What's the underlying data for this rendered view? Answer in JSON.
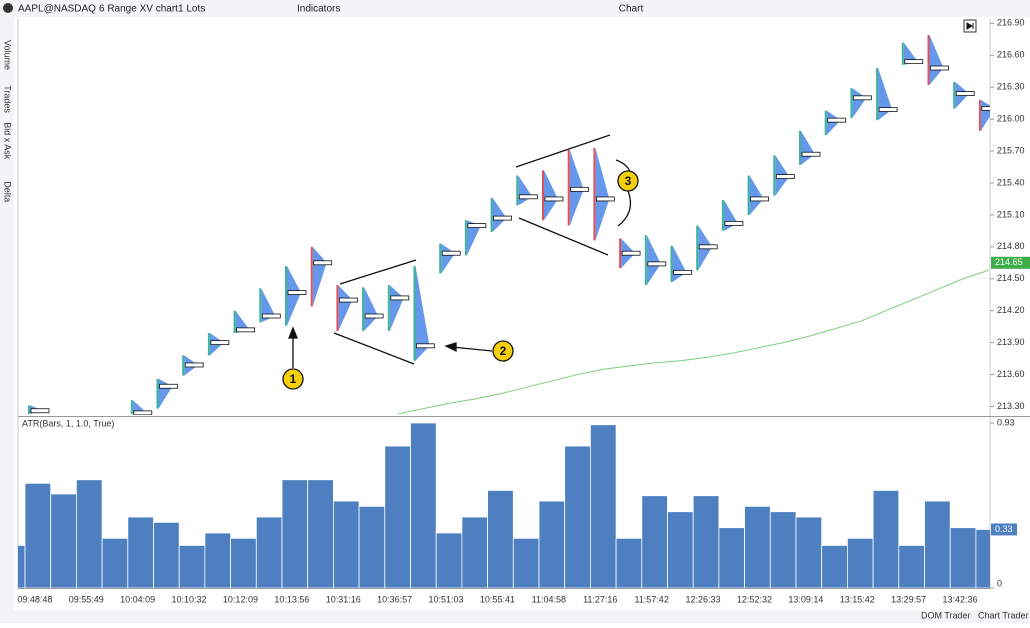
{
  "toolbar": {
    "symbol": "AAPL@NASDAQ",
    "chart_type": "6 Range XV chart",
    "lots": "1 Lots",
    "indicators": "Indicators",
    "window_title": "Chart"
  },
  "side_tabs": [
    "Volume",
    "Trades",
    "Bid x Ask",
    "Delta"
  ],
  "footer": {
    "dom_trader": "DOM Trader",
    "chart_trader": "Chart Trader"
  },
  "annotations": [
    "1",
    "2",
    "3"
  ],
  "chart_data": [
    {
      "type": "range-bar",
      "lows": [
        null,
        213.23,
        null,
        null,
        null,
        213.23,
        213.28,
        213.59,
        213.78,
        213.99,
        214.09,
        214.06,
        214.24,
        214.01,
        214.01,
        214.01,
        213.73,
        214.55,
        214.72,
        214.94,
        215.19,
        215.05,
        215.0,
        214.86,
        214.6,
        214.44,
        214.47,
        214.58,
        214.95,
        215.1,
        215.28,
        215.57,
        215.85,
        216.01,
        215.99,
        216.51,
        216.32,
        216.1,
        215.89
      ],
      "highs": [
        null,
        213.31,
        null,
        null,
        null,
        213.36,
        213.56,
        213.78,
        213.99,
        214.2,
        214.41,
        214.62,
        214.8,
        214.44,
        214.42,
        214.44,
        214.62,
        214.83,
        215.05,
        215.26,
        215.47,
        215.52,
        215.71,
        215.73,
        214.88,
        214.91,
        214.81,
        215.0,
        215.24,
        215.47,
        215.66,
        215.89,
        216.08,
        216.29,
        216.48,
        216.72,
        216.79,
        216.35,
        216.18
      ],
      "pocs": [
        null,
        213.26,
        null,
        null,
        null,
        213.24,
        213.49,
        213.69,
        213.9,
        214.02,
        214.15,
        214.37,
        214.65,
        214.3,
        214.15,
        214.32,
        213.87,
        214.74,
        215.0,
        215.07,
        215.27,
        215.25,
        215.34,
        215.25,
        214.74,
        214.64,
        214.56,
        214.8,
        215.02,
        215.25,
        215.46,
        215.67,
        215.99,
        216.2,
        216.09,
        216.54,
        216.48,
        216.24,
        216.1
      ],
      "bar_colors": [
        null,
        "#3fb39a",
        null,
        null,
        null,
        "#3fb39a",
        "#3fb39a",
        "#3fb39a",
        "#3fb39a",
        "#3fb39a",
        "#3fb39a",
        "#3fb39a",
        "#e0525b",
        "#e0525b",
        "#3fb39a",
        "#3fb39a",
        "#3fb39a",
        "#3fb39a",
        "#3fb39a",
        "#3fb39a",
        "#3fb39a",
        "#e0525b",
        "#e0525b",
        "#e0525b",
        "#e0525b",
        "#3fb39a",
        "#3fb39a",
        "#3fb39a",
        "#3fb39a",
        "#3fb39a",
        "#3fb39a",
        "#3fb39a",
        "#3fb39a",
        "#3fb39a",
        "#3fb39a",
        "#3fb39a",
        "#e0525b",
        "#3fb39a",
        "#e0525b"
      ],
      "profile_color": "#4a86e8",
      "ma": {
        "color": "#7ccf7c",
        "values": [
          null,
          null,
          null,
          null,
          null,
          null,
          null,
          null,
          null,
          null,
          null,
          null,
          null,
          null,
          null,
          213.23,
          213.28,
          213.33,
          213.37,
          213.42,
          213.48,
          213.54,
          213.6,
          213.65,
          213.68,
          213.71,
          213.73,
          213.76,
          213.8,
          213.85,
          213.9,
          213.96,
          214.03,
          214.1,
          214.2,
          214.3,
          214.4,
          214.5,
          214.58
        ]
      },
      "last_price": {
        "value": 214.65,
        "label": "214.65"
      },
      "ylim": [
        213.22,
        216.95
      ],
      "yticks": [
        {
          "value": 216.9,
          "label": "216.90"
        },
        {
          "value": 216.6,
          "label": "216.60"
        },
        {
          "value": 216.3,
          "label": "216.30"
        },
        {
          "value": 216.0,
          "label": "216.00"
        },
        {
          "value": 215.7,
          "label": "215.70"
        },
        {
          "value": 215.4,
          "label": "215.40"
        },
        {
          "value": 215.1,
          "label": "215.10"
        },
        {
          "value": 214.8,
          "label": "214.80"
        },
        {
          "value": 214.5,
          "label": "214.50"
        },
        {
          "value": 214.2,
          "label": "214.20"
        },
        {
          "value": 213.9,
          "label": "213.90"
        },
        {
          "value": 213.6,
          "label": "213.60"
        },
        {
          "value": 213.3,
          "label": "213.30"
        }
      ]
    },
    {
      "type": "bar",
      "title": "ATR(Bars, 1, 1.0, True)",
      "color": "#4e7fc0",
      "categories": [
        null,
        "09:48:48",
        null,
        "09:55:49",
        null,
        "10:04:09",
        null,
        "10:10:32",
        null,
        "10:12:09",
        null,
        "10:13:56",
        null,
        "10:31:16",
        null,
        "10:36:57",
        null,
        "10:51:03",
        null,
        "10:55:41",
        null,
        "11:04:58",
        null,
        "11:27:16",
        null,
        "11:57:42",
        null,
        "12:26:33",
        null,
        "12:52:32",
        null,
        "13:09:14",
        null,
        "13:15:42",
        null,
        "13:29:57",
        null,
        "13:42:36",
        null
      ],
      "values": [
        0.24,
        0.59,
        0.53,
        0.61,
        0.28,
        0.4,
        0.37,
        0.24,
        0.31,
        0.28,
        0.4,
        0.61,
        0.61,
        0.49,
        0.46,
        0.8,
        0.93,
        0.31,
        0.4,
        0.55,
        0.28,
        0.49,
        0.8,
        0.92,
        0.28,
        0.52,
        0.43,
        0.52,
        0.34,
        0.46,
        0.43,
        0.4,
        0.24,
        0.28,
        0.55,
        0.24,
        0.49,
        0.34,
        0.33
      ],
      "ylim": [
        0,
        0.958
      ],
      "yticks": [
        0.93,
        0
      ]
    }
  ]
}
